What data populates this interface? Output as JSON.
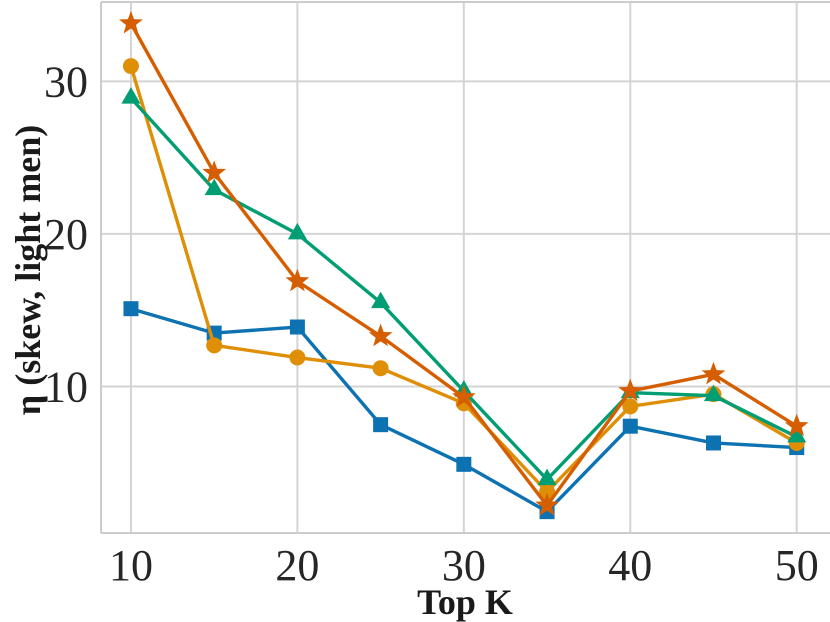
{
  "figure": {
    "xlabel": "Top K",
    "ylabel": "η (skew, light men)"
  },
  "chart_data": {
    "type": "line",
    "title": "",
    "xlabel": "Top K",
    "ylabel": "η (skew, light men)",
    "x": [
      10,
      15,
      20,
      25,
      30,
      35,
      40,
      45,
      50
    ],
    "series": [
      {
        "name": "blue-square-series",
        "marker": "square",
        "color": "#0d72b2",
        "values": [
          15.1,
          13.5,
          13.9,
          7.5,
          4.9,
          1.8,
          7.4,
          6.3,
          6.0
        ]
      },
      {
        "name": "orange-circle-series",
        "marker": "circle",
        "color": "#de8f05",
        "values": [
          31.0,
          12.7,
          11.9,
          11.2,
          8.9,
          3.1,
          8.7,
          9.5,
          6.3
        ]
      },
      {
        "name": "green-triangle-series",
        "marker": "triangle",
        "color": "#029e73",
        "values": [
          28.9,
          22.9,
          20.0,
          15.5,
          9.7,
          3.9,
          9.6,
          9.4,
          6.7
        ]
      },
      {
        "name": "red-star-series",
        "marker": "star",
        "color": "#d55e00",
        "values": [
          33.8,
          24.0,
          16.9,
          13.3,
          9.3,
          2.2,
          9.7,
          10.8,
          7.4
        ]
      }
    ],
    "xticks": [
      10,
      20,
      30,
      40,
      50
    ],
    "yticks": [
      10,
      20,
      30
    ],
    "xlim": [
      8.2,
      52.0
    ],
    "ylim": [
      0.4,
      35.2
    ],
    "grid": true,
    "legend": null,
    "grid_color": "#d4d4d4",
    "spine_color": "#cccccc",
    "text_color": "#262626",
    "line_width": 3.4
  }
}
